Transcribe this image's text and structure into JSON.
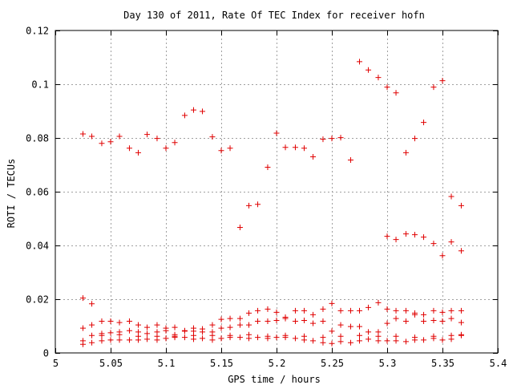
{
  "chart_data": {
    "type": "scatter",
    "title": "Day 130 of 2011, Rate Of TEC Index for receiver hofn",
    "xlabel": "GPS time / hours",
    "ylabel": "ROTI / TECUs",
    "xlim": [
      5,
      5.4
    ],
    "ylim": [
      0,
      0.12
    ],
    "x_ticks": [
      "5",
      "5.05",
      "5.1",
      "5.15",
      "5.2",
      "5.25",
      "5.3",
      "5.35",
      "5.4"
    ],
    "y_ticks": [
      "0",
      "0.02",
      "0.04",
      "0.06",
      "0.08",
      "0.1",
      "0.12"
    ],
    "x_tick_values": [
      5,
      5.05,
      5.1,
      5.15,
      5.2,
      5.25,
      5.3,
      5.35,
      5.4
    ],
    "y_tick_values": [
      0,
      0.02,
      0.04,
      0.06,
      0.08,
      0.1,
      0.12
    ],
    "grid": true,
    "marker": "+",
    "color": "#e00000",
    "series": [
      {
        "points": [
          [
            5.025,
            0.0815
          ],
          [
            5.033,
            0.0806
          ],
          [
            5.042,
            0.078
          ],
          [
            5.05,
            0.0786
          ],
          [
            5.058,
            0.0806
          ],
          [
            5.067,
            0.0762
          ],
          [
            5.075,
            0.0745
          ],
          [
            5.083,
            0.0813
          ],
          [
            5.092,
            0.0798
          ],
          [
            5.1,
            0.0762
          ],
          [
            5.108,
            0.0783
          ],
          [
            5.117,
            0.0884
          ],
          [
            5.125,
            0.0904
          ],
          [
            5.133,
            0.0899
          ],
          [
            5.142,
            0.0804
          ],
          [
            5.15,
            0.0753
          ],
          [
            5.158,
            0.0762
          ],
          [
            5.167,
            0.0467
          ],
          [
            5.175,
            0.0548
          ],
          [
            5.183,
            0.0553
          ],
          [
            5.192,
            0.0691
          ],
          [
            5.2,
            0.0818
          ],
          [
            5.208,
            0.0765
          ],
          [
            5.217,
            0.0765
          ],
          [
            5.225,
            0.0762
          ],
          [
            5.233,
            0.073
          ],
          [
            5.242,
            0.0795
          ],
          [
            5.25,
            0.0798
          ],
          [
            5.258,
            0.0801
          ],
          [
            5.267,
            0.0718
          ],
          [
            5.275,
            0.1084
          ],
          [
            5.283,
            0.1053
          ],
          [
            5.292,
            0.1025
          ],
          [
            5.3,
            0.0989
          ],
          [
            5.308,
            0.0968
          ],
          [
            5.317,
            0.0745
          ],
          [
            5.325,
            0.0798
          ],
          [
            5.333,
            0.0858
          ],
          [
            5.342,
            0.0989
          ],
          [
            5.35,
            0.1013
          ],
          [
            5.358,
            0.0582
          ],
          [
            5.367,
            0.0548
          ],
          [
            5.3,
            0.0434
          ],
          [
            5.308,
            0.0422
          ],
          [
            5.317,
            0.0443
          ],
          [
            5.325,
            0.044
          ],
          [
            5.333,
            0.0431
          ],
          [
            5.342,
            0.0407
          ],
          [
            5.35,
            0.0362
          ],
          [
            5.358,
            0.0413
          ],
          [
            5.367,
            0.038
          ],
          [
            5.025,
            0.0204
          ],
          [
            5.033,
            0.0183
          ],
          [
            5.025,
            0.0092
          ],
          [
            5.033,
            0.0104
          ],
          [
            5.042,
            0.0118
          ],
          [
            5.05,
            0.0118
          ],
          [
            5.058,
            0.0113
          ],
          [
            5.067,
            0.0118
          ],
          [
            5.075,
            0.0104
          ],
          [
            5.083,
            0.0095
          ],
          [
            5.092,
            0.0104
          ],
          [
            5.1,
            0.0092
          ],
          [
            5.108,
            0.0095
          ],
          [
            5.117,
            0.0083
          ],
          [
            5.125,
            0.0092
          ],
          [
            5.133,
            0.0089
          ],
          [
            5.142,
            0.0104
          ],
          [
            5.15,
            0.0125
          ],
          [
            5.158,
            0.0128
          ],
          [
            5.167,
            0.0128
          ],
          [
            5.175,
            0.0148
          ],
          [
            5.183,
            0.0157
          ],
          [
            5.192,
            0.0163
          ],
          [
            5.2,
            0.0151
          ],
          [
            5.208,
            0.0133
          ],
          [
            5.217,
            0.0157
          ],
          [
            5.225,
            0.0157
          ],
          [
            5.233,
            0.0142
          ],
          [
            5.242,
            0.0163
          ],
          [
            5.25,
            0.0184
          ],
          [
            5.258,
            0.0157
          ],
          [
            5.267,
            0.0157
          ],
          [
            5.275,
            0.0157
          ],
          [
            5.283,
            0.0169
          ],
          [
            5.292,
            0.0187
          ],
          [
            5.3,
            0.0163
          ],
          [
            5.308,
            0.0157
          ],
          [
            5.317,
            0.0157
          ],
          [
            5.325,
            0.0148
          ],
          [
            5.333,
            0.0142
          ],
          [
            5.342,
            0.0157
          ],
          [
            5.35,
            0.0151
          ],
          [
            5.358,
            0.0157
          ],
          [
            5.367,
            0.0157
          ],
          [
            5.025,
            0.0045
          ],
          [
            5.033,
            0.0065
          ],
          [
            5.042,
            0.0072
          ],
          [
            5.05,
            0.0075
          ],
          [
            5.058,
            0.0078
          ],
          [
            5.067,
            0.0083
          ],
          [
            5.075,
            0.0078
          ],
          [
            5.083,
            0.0072
          ],
          [
            5.092,
            0.0078
          ],
          [
            5.1,
            0.0083
          ],
          [
            5.108,
            0.0068
          ],
          [
            5.117,
            0.0081
          ],
          [
            5.125,
            0.0081
          ],
          [
            5.133,
            0.0078
          ],
          [
            5.142,
            0.0078
          ],
          [
            5.15,
            0.0092
          ],
          [
            5.158,
            0.0095
          ],
          [
            5.167,
            0.0104
          ],
          [
            5.175,
            0.0104
          ],
          [
            5.183,
            0.0118
          ],
          [
            5.192,
            0.0118
          ],
          [
            5.2,
            0.0121
          ],
          [
            5.208,
            0.0128
          ],
          [
            5.217,
            0.0118
          ],
          [
            5.225,
            0.0121
          ],
          [
            5.233,
            0.011
          ],
          [
            5.242,
            0.0118
          ],
          [
            5.25,
            0.0081
          ],
          [
            5.258,
            0.0104
          ],
          [
            5.267,
            0.0098
          ],
          [
            5.275,
            0.0098
          ],
          [
            5.283,
            0.0078
          ],
          [
            5.292,
            0.0078
          ],
          [
            5.3,
            0.011
          ],
          [
            5.308,
            0.0128
          ],
          [
            5.317,
            0.0118
          ],
          [
            5.325,
            0.0142
          ],
          [
            5.333,
            0.0118
          ],
          [
            5.342,
            0.0121
          ],
          [
            5.35,
            0.0118
          ],
          [
            5.358,
            0.0128
          ],
          [
            5.367,
            0.0113
          ],
          [
            5.025,
            0.0032
          ],
          [
            5.033,
            0.0038
          ],
          [
            5.042,
            0.0045
          ],
          [
            5.05,
            0.0048
          ],
          [
            5.058,
            0.0048
          ],
          [
            5.067,
            0.0048
          ],
          [
            5.075,
            0.0048
          ],
          [
            5.083,
            0.0051
          ],
          [
            5.092,
            0.0048
          ],
          [
            5.1,
            0.0054
          ],
          [
            5.108,
            0.0058
          ],
          [
            5.117,
            0.0058
          ],
          [
            5.125,
            0.0051
          ],
          [
            5.133,
            0.0054
          ],
          [
            5.142,
            0.0048
          ],
          [
            5.15,
            0.0054
          ],
          [
            5.158,
            0.0058
          ],
          [
            5.167,
            0.0058
          ],
          [
            5.175,
            0.0054
          ],
          [
            5.183,
            0.0058
          ],
          [
            5.192,
            0.0054
          ],
          [
            5.2,
            0.0058
          ],
          [
            5.208,
            0.0058
          ],
          [
            5.217,
            0.0054
          ],
          [
            5.225,
            0.0048
          ],
          [
            5.233,
            0.0045
          ],
          [
            5.242,
            0.0038
          ],
          [
            5.25,
            0.0035
          ],
          [
            5.258,
            0.0042
          ],
          [
            5.267,
            0.0038
          ],
          [
            5.275,
            0.0045
          ],
          [
            5.283,
            0.0051
          ],
          [
            5.292,
            0.0045
          ],
          [
            5.3,
            0.0045
          ],
          [
            5.308,
            0.0045
          ],
          [
            5.317,
            0.0042
          ],
          [
            5.325,
            0.0048
          ],
          [
            5.333,
            0.0048
          ],
          [
            5.342,
            0.0054
          ],
          [
            5.35,
            0.0048
          ],
          [
            5.358,
            0.0051
          ],
          [
            5.367,
            0.0065
          ],
          [
            5.042,
            0.0065
          ],
          [
            5.058,
            0.0068
          ],
          [
            5.075,
            0.0062
          ],
          [
            5.092,
            0.0062
          ],
          [
            5.108,
            0.0062
          ],
          [
            5.125,
            0.0065
          ],
          [
            5.142,
            0.0065
          ],
          [
            5.158,
            0.0065
          ],
          [
            5.175,
            0.0068
          ],
          [
            5.192,
            0.0062
          ],
          [
            5.208,
            0.0065
          ],
          [
            5.225,
            0.0062
          ],
          [
            5.242,
            0.0058
          ],
          [
            5.258,
            0.0062
          ],
          [
            5.275,
            0.0065
          ],
          [
            5.292,
            0.0062
          ],
          [
            5.308,
            0.0062
          ],
          [
            5.325,
            0.0058
          ],
          [
            5.342,
            0.0062
          ],
          [
            5.358,
            0.0065
          ],
          [
            5.367,
            0.0068
          ]
        ]
      }
    ]
  }
}
